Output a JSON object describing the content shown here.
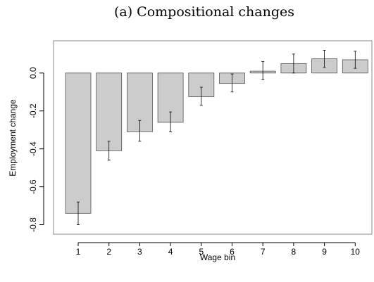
{
  "chart_data": {
    "type": "bar",
    "title": "(a) Compositional changes",
    "xlabel": "Wage bin",
    "ylabel": "Employment change",
    "categories": [
      "1",
      "2",
      "3",
      "4",
      "5",
      "6",
      "7",
      "8",
      "9",
      "10"
    ],
    "values": [
      -0.74,
      -0.41,
      -0.31,
      -0.26,
      -0.125,
      -0.055,
      0.01,
      0.05,
      0.075,
      0.07
    ],
    "error_low": [
      -0.8,
      -0.46,
      -0.36,
      -0.31,
      -0.17,
      -0.1,
      -0.035,
      0.0,
      0.03,
      0.025
    ],
    "error_high": [
      -0.68,
      -0.36,
      -0.25,
      -0.205,
      -0.075,
      -0.005,
      0.06,
      0.1,
      0.12,
      0.115
    ],
    "yticks": [
      "0.0",
      "-0.2",
      "-0.4",
      "-0.6",
      "-0.8"
    ],
    "ylim": [
      -0.85,
      0.17
    ],
    "grid": false,
    "bar_color": "#cccccc",
    "bar_border_color": "#555555"
  }
}
